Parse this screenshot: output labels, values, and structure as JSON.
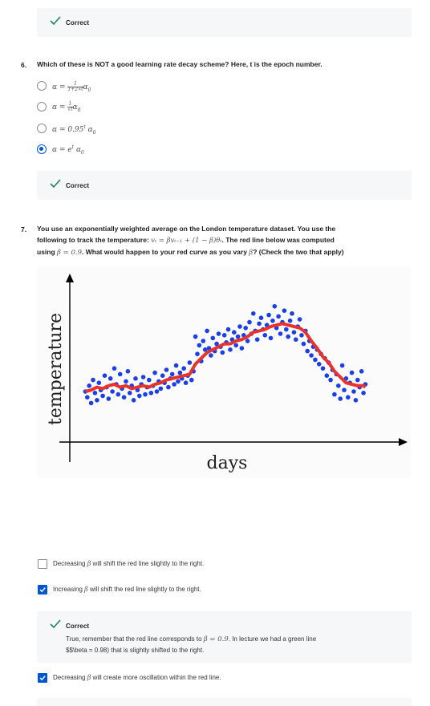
{
  "top_feedback": {
    "title": "Correct"
  },
  "q6": {
    "number": "6.",
    "text": "Which of these is NOT a good learning rate decay scheme? Here, t is the epoch number.",
    "options": [
      {
        "label": "α = 1/(1+2*t) α₀",
        "selected": false
      },
      {
        "label": "α = 1/√t α₀",
        "selected": false
      },
      {
        "label": "α = 0.95ᵗ α₀",
        "selected": false
      },
      {
        "label": "α = eᵗ α₀",
        "selected": true
      }
    ],
    "feedback": {
      "title": "Correct"
    }
  },
  "q7": {
    "number": "7.",
    "line1": "You use an exponentially weighted average on the London temperature dataset. You use the",
    "line2a": "following to track the temperature: ",
    "line2_math": "vₜ = βvₜ₋₁ + (1 − β)θₜ",
    "line2b": ". The red line below was computed",
    "line3a": "using ",
    "line3_math1": "β = 0.9",
    "line3b": ". What would happen to your red curve as you vary ",
    "line3_math2": "β",
    "line3c": "? (Check the two that apply)",
    "choices": [
      {
        "pre": "Decreasing ",
        "math": "β",
        "post": " will shift the red line slightly to the right.",
        "checked": false
      },
      {
        "pre": "Increasing ",
        "math": "β",
        "post": " will shift the red line slightly to the right.",
        "checked": true
      },
      {
        "pre": "Decreasing ",
        "math": "β",
        "post": " will create more oscillation within the red line.",
        "checked": true
      }
    ],
    "feedback": {
      "title": "Correct",
      "exp1a": "True, remember that the red line corresponds to ",
      "exp1_math": "β = 0.9",
      "exp1b": ". In lecture we had a green line",
      "exp2": "$$\\beta = 0.98) that is slightly shifted to the right."
    }
  },
  "colors": {
    "accent": "#0056d2",
    "success": "#1f8354",
    "dots": "#1a3ee8",
    "ewa_line": "#e8322b"
  },
  "chart_data": {
    "type": "scatter",
    "xlabel": "days",
    "ylabel": "temperature",
    "ylim": [
      0,
      10
    ],
    "xlim": [
      0,
      100
    ],
    "series": [
      {
        "values": [
          [
            0.5,
            3.0
          ],
          [
            1,
            2.6
          ],
          [
            1.5,
            3.4
          ],
          [
            2,
            2.2
          ],
          [
            2.5,
            3.8
          ],
          [
            3,
            2.9
          ],
          [
            3.5,
            2.4
          ],
          [
            4,
            3.6
          ],
          [
            4.5,
            3.1
          ],
          [
            5,
            2.7
          ],
          [
            5.5,
            4.1
          ],
          [
            6,
            3.3
          ],
          [
            6.5,
            2.5
          ],
          [
            7,
            3.9
          ],
          [
            7.5,
            3.0
          ],
          [
            8,
            4.6
          ],
          [
            8.5,
            3.5
          ],
          [
            9,
            2.8
          ],
          [
            9.5,
            4.2
          ],
          [
            10,
            3.2
          ],
          [
            10.5,
            2.6
          ],
          [
            11,
            3.7
          ],
          [
            11.5,
            4.4
          ],
          [
            12,
            2.9
          ],
          [
            12.5,
            3.4
          ],
          [
            13,
            2.4
          ],
          [
            13.5,
            3.9
          ],
          [
            14,
            3.1
          ],
          [
            14.5,
            2.7
          ],
          [
            15,
            3.5
          ],
          [
            15.5,
            4.0
          ],
          [
            16,
            2.8
          ],
          [
            16.5,
            3.3
          ],
          [
            17,
            3.8
          ],
          [
            17.5,
            2.9
          ],
          [
            18,
            3.4
          ],
          [
            18.5,
            4.3
          ],
          [
            19,
            3.0
          ],
          [
            19.5,
            3.7
          ],
          [
            20,
            3.2
          ],
          [
            20.5,
            4.1
          ],
          [
            21,
            3.6
          ],
          [
            21.5,
            4.5
          ],
          [
            22,
            3.3
          ],
          [
            22.5,
            3.9
          ],
          [
            23,
            4.2
          ],
          [
            23.5,
            3.5
          ],
          [
            24,
            4.8
          ],
          [
            24.5,
            3.7
          ],
          [
            25,
            4.3
          ],
          [
            25.5,
            3.9
          ],
          [
            26,
            4.6
          ],
          [
            26.5,
            3.6
          ],
          [
            27,
            4.1
          ],
          [
            27.5,
            5.0
          ],
          [
            28,
            3.8
          ],
          [
            28.5,
            4.4
          ],
          [
            29,
            6.8
          ],
          [
            29.5,
            5.6
          ],
          [
            30,
            6.2
          ],
          [
            30.5,
            5.1
          ],
          [
            31,
            6.5
          ],
          [
            31.5,
            5.9
          ],
          [
            32,
            7.2
          ],
          [
            32.5,
            6.0
          ],
          [
            33,
            5.5
          ],
          [
            33.5,
            6.7
          ],
          [
            34,
            5.8
          ],
          [
            34.5,
            6.3
          ],
          [
            35,
            7.0
          ],
          [
            35.5,
            6.1
          ],
          [
            36,
            5.7
          ],
          [
            36.5,
            6.9
          ],
          [
            37,
            6.4
          ],
          [
            37.5,
            7.3
          ],
          [
            38,
            5.9
          ],
          [
            38.5,
            6.6
          ],
          [
            39,
            7.1
          ],
          [
            39.5,
            6.2
          ],
          [
            40,
            6.8
          ],
          [
            40.5,
            7.5
          ],
          [
            41,
            6.0
          ],
          [
            41.5,
            6.9
          ],
          [
            42,
            7.4
          ],
          [
            42.5,
            6.5
          ],
          [
            43,
            7.8
          ],
          [
            43.5,
            7.0
          ],
          [
            44,
            8.4
          ],
          [
            44.5,
            7.2
          ],
          [
            45,
            6.6
          ],
          [
            45.5,
            7.7
          ],
          [
            46,
            8.1
          ],
          [
            46.5,
            7.3
          ],
          [
            47,
            6.9
          ],
          [
            47.5,
            7.6
          ],
          [
            48,
            8.3
          ],
          [
            48.5,
            6.7
          ],
          [
            49,
            7.9
          ],
          [
            49.5,
            8.9
          ],
          [
            50,
            7.4
          ],
          [
            50.5,
            8.2
          ],
          [
            51,
            7.0
          ],
          [
            51.5,
            7.8
          ],
          [
            52,
            8.6
          ],
          [
            52.5,
            7.3
          ],
          [
            53,
            6.8
          ],
          [
            53.5,
            7.9
          ],
          [
            54,
            8.4
          ],
          [
            54.5,
            7.1
          ],
          [
            55,
            6.6
          ],
          [
            55.5,
            7.5
          ],
          [
            56,
            8.0
          ],
          [
            56.5,
            6.9
          ],
          [
            57,
            6.3
          ],
          [
            57.5,
            7.2
          ],
          [
            58,
            5.8
          ],
          [
            58.5,
            6.5
          ],
          [
            59,
            5.5
          ],
          [
            59.5,
            6.1
          ],
          [
            60,
            5.2
          ],
          [
            60.5,
            5.9
          ],
          [
            61,
            4.9
          ],
          [
            61.5,
            5.6
          ],
          [
            62,
            4.6
          ],
          [
            62.5,
            5.3
          ],
          [
            63,
            4.1
          ],
          [
            63.5,
            5.0
          ],
          [
            64,
            3.8
          ],
          [
            64.5,
            4.5
          ],
          [
            65,
            2.8
          ],
          [
            65.5,
            4.2
          ],
          [
            66,
            3.4
          ],
          [
            66.5,
            2.5
          ],
          [
            67,
            4.8
          ],
          [
            67.5,
            3.1
          ],
          [
            68,
            3.9
          ],
          [
            68.5,
            2.6
          ],
          [
            69,
            3.6
          ],
          [
            69.5,
            4.3
          ],
          [
            70,
            3.0
          ],
          [
            70.5,
            2.4
          ],
          [
            71,
            3.8
          ],
          [
            71.5,
            3.3
          ],
          [
            72,
            4.4
          ],
          [
            72.5,
            2.9
          ],
          [
            73,
            3.5
          ]
        ]
      },
      {
        "name": "",
        "values": [
          [
            0.5,
            3.0
          ],
          [
            2,
            3.1
          ],
          [
            3.5,
            3.3
          ],
          [
            5,
            3.2
          ],
          [
            6.5,
            3.4
          ],
          [
            8,
            3.5
          ],
          [
            9.5,
            3.3
          ],
          [
            11,
            3.4
          ],
          [
            12.5,
            3.2
          ],
          [
            14,
            3.3
          ],
          [
            15.5,
            3.4
          ],
          [
            17,
            3.3
          ],
          [
            18.5,
            3.5
          ],
          [
            20,
            3.6
          ],
          [
            21.5,
            3.8
          ],
          [
            23,
            3.9
          ],
          [
            24.5,
            4.0
          ],
          [
            26,
            4.1
          ],
          [
            27.5,
            4.2
          ],
          [
            29,
            4.9
          ],
          [
            30.5,
            5.3
          ],
          [
            32,
            5.7
          ],
          [
            33.5,
            5.9
          ],
          [
            35,
            6.1
          ],
          [
            36.5,
            6.3
          ],
          [
            38,
            6.3
          ],
          [
            39.5,
            6.5
          ],
          [
            41,
            6.6
          ],
          [
            42.5,
            6.8
          ],
          [
            44,
            7.1
          ],
          [
            45.5,
            7.2
          ],
          [
            47,
            7.3
          ],
          [
            48.5,
            7.5
          ],
          [
            50,
            7.6
          ],
          [
            51.5,
            7.7
          ],
          [
            53,
            7.6
          ],
          [
            54.5,
            7.5
          ],
          [
            56,
            7.4
          ],
          [
            57.5,
            7.1
          ],
          [
            59,
            6.5
          ],
          [
            60.5,
            6.0
          ],
          [
            62,
            5.4
          ],
          [
            63.5,
            5.0
          ],
          [
            65,
            4.4
          ],
          [
            66.5,
            4.0
          ],
          [
            68,
            3.6
          ],
          [
            69.5,
            3.5
          ],
          [
            71,
            3.4
          ],
          [
            72.5,
            3.4
          ],
          [
            73,
            3.3
          ]
        ]
      }
    ]
  }
}
